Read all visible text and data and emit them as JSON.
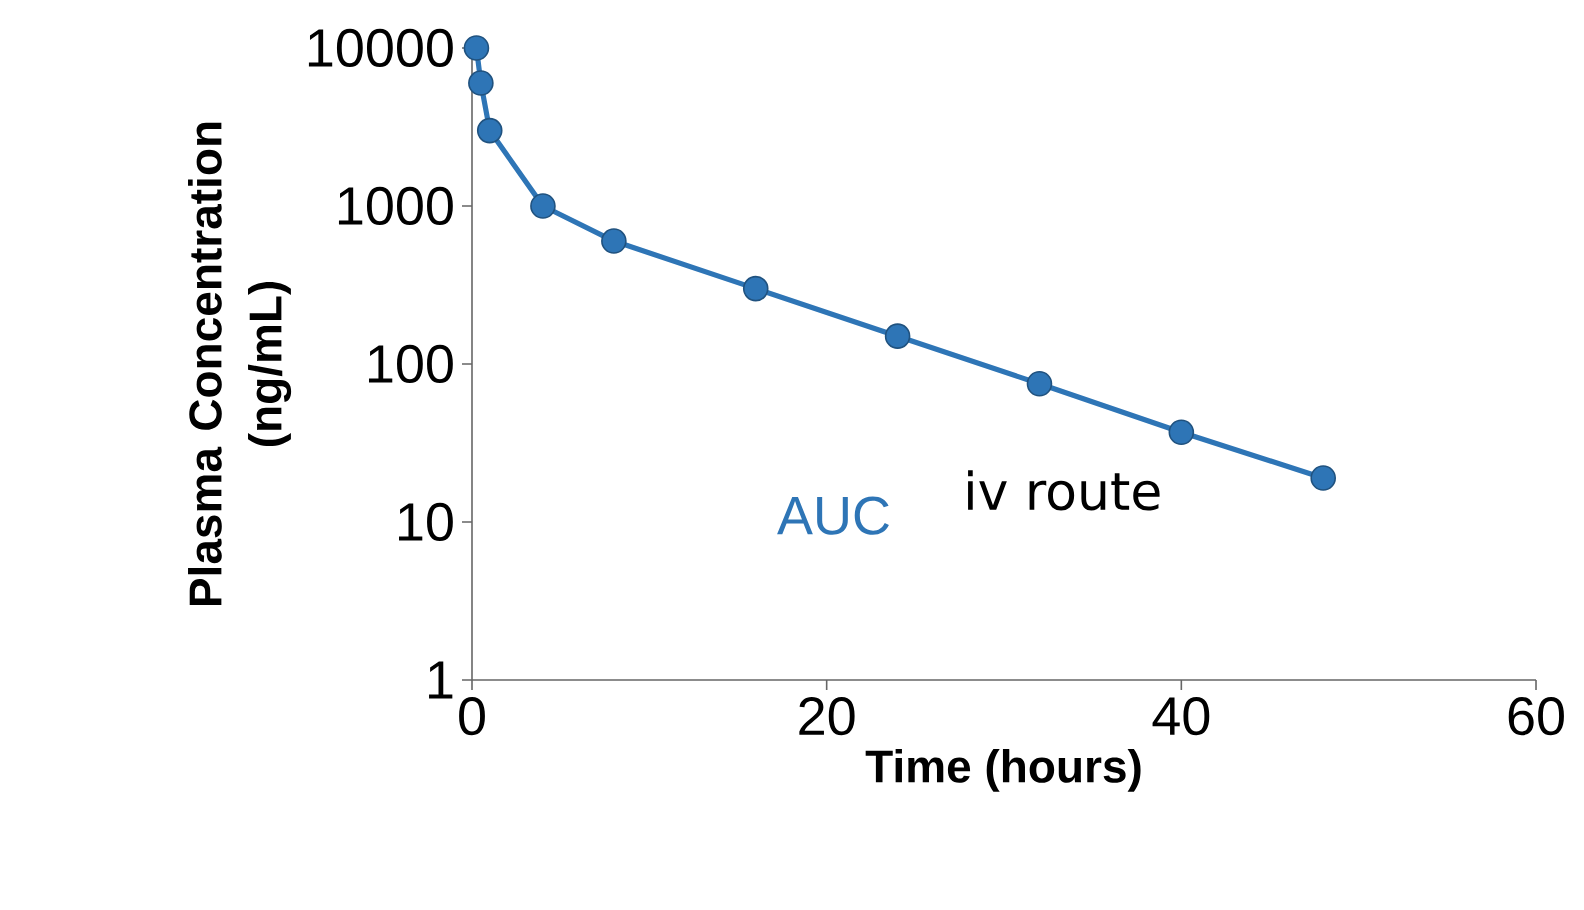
{
  "chart_data": {
    "type": "line",
    "xlabel": "Time (hours)",
    "ylabel": "Plasma Concentration (ng/mL)",
    "x": [
      0.25,
      0.5,
      1,
      4,
      8,
      16,
      24,
      32,
      40,
      48
    ],
    "series": [
      {
        "color": "#2e75b6",
        "values": [
          10000,
          6000,
          3000,
          1000,
          600,
          300,
          150,
          75,
          37,
          19
        ]
      }
    ],
    "xlim": [
      0,
      60
    ],
    "xticks": [
      0,
      20,
      40,
      60
    ],
    "ylim": [
      1,
      10000
    ],
    "yticks": [
      1,
      10,
      100,
      1000,
      10000
    ],
    "log": "y",
    "grid": false,
    "legend": false,
    "marker": "circle",
    "line_style": "solid",
    "annotations": [
      "AUC",
      "iv route"
    ]
  }
}
